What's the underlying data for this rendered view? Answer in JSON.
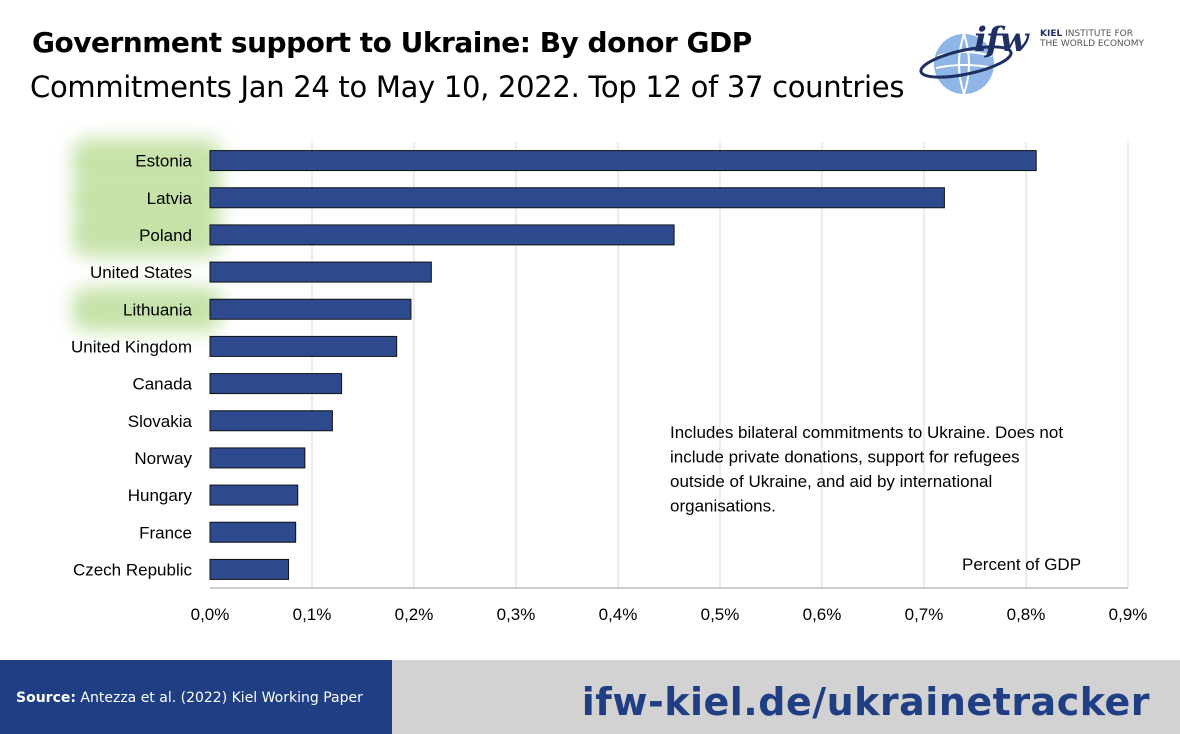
{
  "header": {
    "title": "Government support to Ukraine: By donor GDP",
    "subtitle": "Commitments Jan 24 to May 10, 2022. Top 12 of 37 countries"
  },
  "logo": {
    "word": "ifw",
    "line1_bold": "KIEL",
    "line1_rest": " INSTITUTE FOR",
    "line2": "THE WORLD ECONOMY"
  },
  "chart_data": {
    "type": "bar",
    "orientation": "horizontal",
    "title": "Government support to Ukraine: By donor GDP",
    "categories": [
      "Estonia",
      "Latvia",
      "Poland",
      "United States",
      "Lithuania",
      "United Kingdom",
      "Canada",
      "Slovakia",
      "Norway",
      "Hungary",
      "France",
      "Czech Republic"
    ],
    "values": [
      0.81,
      0.72,
      0.455,
      0.217,
      0.197,
      0.183,
      0.129,
      0.12,
      0.093,
      0.086,
      0.084,
      0.077
    ],
    "highlighted": [
      "Estonia",
      "Latvia",
      "Poland",
      "Lithuania"
    ],
    "xlim": [
      0,
      0.9
    ],
    "xticks": [
      0,
      0.1,
      0.2,
      0.3,
      0.4,
      0.5,
      0.6,
      0.7,
      0.8,
      0.9
    ],
    "xtick_labels": [
      "0,0%",
      "0,1%",
      "0,2%",
      "0,3%",
      "0,4%",
      "0,5%",
      "0,6%",
      "0,7%",
      "0,8%",
      "0,9%"
    ],
    "xlabel": "Percent of GDP",
    "ylabel": "",
    "grid": true,
    "note": [
      "Includes bilateral commitments to Ukraine. Does not",
      "include private donations, support for refugees",
      "outside of Ukraine, and aid by international",
      "organisations."
    ],
    "colors": {
      "bar": "#2e4a8e",
      "bar_edge": "#111111",
      "grid": "#d9d9d9",
      "highlight": "#b3d98c"
    }
  },
  "footer": {
    "source_label": "Source:",
    "source_text": " Antezza et al. (2022) Kiel Working Paper",
    "tracker": "ifw-kiel.de/ukrainetracker"
  }
}
